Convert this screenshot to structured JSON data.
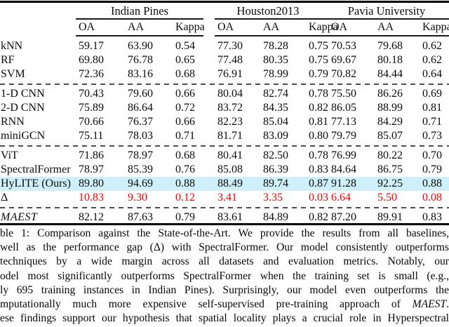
{
  "table": {
    "groups": [
      "Indian Pines",
      "Houston2013",
      "Pavia University"
    ],
    "metrics": [
      "OA",
      "AA",
      "Kappa"
    ],
    "sections": [
      {
        "rows": [
          {
            "label": "kNN",
            "variant": "default",
            "values": [
              "59.17",
              "63.90",
              "0.54",
              "77.30",
              "78.28",
              "0.75",
              "70.53",
              "79.68",
              "0.62"
            ]
          },
          {
            "label": "RF",
            "variant": "default",
            "values": [
              "69.80",
              "76.78",
              "0.65",
              "77.48",
              "80.35",
              "0.75",
              "69.67",
              "80.18",
              "0.62"
            ]
          },
          {
            "label": "SVM",
            "variant": "default",
            "values": [
              "72.36",
              "83.16",
              "0.68",
              "76.91",
              "78.99",
              "0.79",
              "70.82",
              "84.44",
              "0.64"
            ]
          }
        ]
      },
      {
        "rows": [
          {
            "label": "1-D CNN",
            "variant": "default",
            "values": [
              "70.43",
              "79.60",
              "0.66",
              "80.04",
              "82.74",
              "0.78",
              "75.50",
              "86.26",
              "0.69"
            ]
          },
          {
            "label": "2-D CNN",
            "variant": "default",
            "values": [
              "75.89",
              "86.64",
              "0.72",
              "83.72",
              "84.35",
              "0.82",
              "86.05",
              "88.99",
              "0.81"
            ]
          },
          {
            "label": "RNN",
            "variant": "default",
            "values": [
              "70.66",
              "76.37",
              "0.66",
              "82.23",
              "85.04",
              "0.81",
              "77.13",
              "84.29",
              "0.71"
            ]
          },
          {
            "label": "miniGCN",
            "variant": "default",
            "values": [
              "75.11",
              "78.03",
              "0.71",
              "81.71",
              "83.09",
              "0.80",
              "79.79",
              "85.07",
              "0.73"
            ]
          }
        ]
      },
      {
        "rows": [
          {
            "label": "ViT",
            "variant": "default",
            "values": [
              "71.86",
              "78.97",
              "0.68",
              "80.41",
              "82.50",
              "0.78",
              "76.99",
              "80.22",
              "0.70"
            ]
          },
          {
            "label": "SpectralFormer",
            "variant": "default",
            "values": [
              "78.97",
              "85.39",
              "0.76",
              "85.08",
              "86.39",
              "0.83",
              "84.64",
              "86.75",
              "0.79"
            ]
          },
          {
            "label": "HyLITE (Ours)",
            "variant": "highlight",
            "values": [
              "89.80",
              "94.69",
              "0.88",
              "88.49",
              "89.74",
              "0.87",
              "91.28",
              "92.25",
              "0.88"
            ]
          },
          {
            "label": "Δ",
            "variant": "delta",
            "values": [
              "10.83",
              "9.30",
              "0.12",
              "3.41",
              "3.35",
              "0.03",
              "6.64",
              "5.50",
              "0.08"
            ]
          }
        ]
      },
      {
        "rows": [
          {
            "label": "MAEST",
            "variant": "italic-label",
            "values": [
              "82.12",
              "87.63",
              "0.79",
              "83.61",
              "84.89",
              "0.82",
              "87.20",
              "89.91",
              "0.83"
            ]
          }
        ]
      }
    ]
  },
  "caption": {
    "lines": [
      {
        "segments": [
          {
            "text": "ble 1: Comparison against the State-of-the-Art. We provide the results from all baselines,",
            "italic": false
          }
        ]
      },
      {
        "segments": [
          {
            "text": "well as the performance gap (Δ) with SpectralFormer. Our model consistently outperforms",
            "italic": false
          }
        ]
      },
      {
        "segments": [
          {
            "text": "techniques by a wide margin across all datasets and evaluation metrics. Notably, our",
            "italic": false
          }
        ]
      },
      {
        "segments": [
          {
            "text": "odel most significantly outperforms SpectralFormer when the training set is small (e.g.,",
            "italic": false
          }
        ]
      },
      {
        "segments": [
          {
            "text": "ly 695 training instances in Indian Pines). Surprisingly, our model even outperforms the",
            "italic": false
          }
        ]
      },
      {
        "segments": [
          {
            "text": "mputationally much more expensive self-supervised pre-training approach of ",
            "italic": false
          },
          {
            "text": "MAEST",
            "italic": true
          },
          {
            "text": ".",
            "italic": false
          }
        ]
      },
      {
        "segments": [
          {
            "text": "ese findings support our hypothesis that spatial locality plays a crucial role in Hyperspectral",
            "italic": false
          }
        ]
      }
    ]
  },
  "colors": {
    "highlight_row": "#cfeffa",
    "delta_red": "#f60000",
    "rule_black": "#000000",
    "dash_gray": "#4d4d4d"
  }
}
